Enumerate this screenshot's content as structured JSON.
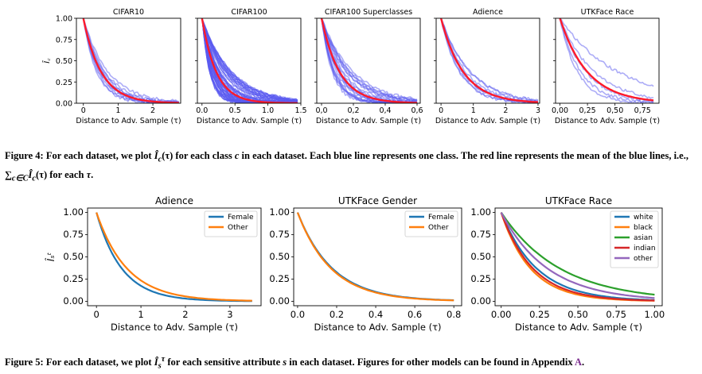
{
  "fig4_caption_parts": [
    "Figure 4: For each dataset, we plot ",
    "Î",
    "c",
    "(τ)",
    " for each class ",
    "c",
    " in each dataset. Each blue line represents one class. The red line represents the mean of the blue lines, i.e., ",
    "∑",
    "c∈C",
    "Î",
    "c",
    "(τ)",
    " for each ",
    "τ",
    "."
  ],
  "fig5_caption_parts": [
    "Figure 5: For each dataset, we plot ",
    "Î",
    "s",
    "τ",
    " for each sensitive attribute ",
    "s",
    " in each dataset. Figures for other models can be found in Appendix ",
    "A",
    "."
  ],
  "colors": {
    "blue_class": "#5b5bf0",
    "red_mean": "#ff1a2a",
    "c0": "#1f77b4",
    "c1": "#ff7f0e",
    "c2": "#2ca02c",
    "c3": "#d62728",
    "c4": "#9467bd",
    "link": "#7b2d8e"
  },
  "chart_data": [
    {
      "type": "line",
      "title": "CIFAR10",
      "xlabel": "Distance to Adv. Sample (τ)",
      "ylabel": "Î_c",
      "xlim": [
        -0.2,
        2.8
      ],
      "ylim": [
        0,
        1
      ],
      "xticks": [
        "0",
        "1",
        "2"
      ],
      "yticks": [
        "0.00",
        "0.25",
        "0.50",
        "0.75",
        "1.00"
      ],
      "n_classes": 10,
      "decay_rates": [
        1.4,
        1.6,
        1.7,
        1.8,
        1.9,
        2.0,
        2.1,
        2.2,
        2.4,
        2.6
      ],
      "mean_decay": 1.95,
      "x_max": 2.75
    },
    {
      "type": "line",
      "title": "CIFAR100",
      "xlabel": "Distance to Adv. Sample (τ)",
      "ylabel": "",
      "xlim": [
        -0.07,
        1.5
      ],
      "ylim": [
        0,
        1
      ],
      "xticks": [
        "0.0",
        "0.5",
        "1.0",
        "1.5"
      ],
      "yticks": [],
      "n_classes": 100,
      "decay_range": [
        2.2,
        9.0
      ],
      "mean_decay": 4.6,
      "x_max": 1.45
    },
    {
      "type": "line",
      "title": "CIFAR100 Superclasses",
      "xlabel": "Distance to Adv. Sample (τ)",
      "ylabel": "",
      "xlim": [
        -0.03,
        0.62
      ],
      "ylim": [
        0,
        1
      ],
      "xticks": [
        "0,0",
        "0,2",
        "0,4",
        "0,6"
      ],
      "yticks": [],
      "n_classes": 20,
      "decay_range": [
        5,
        15
      ],
      "mean_decay": 8.8,
      "x_max": 0.6
    },
    {
      "type": "line",
      "title": "Adience",
      "xlabel": "Distance to Adv. Sample (τ)",
      "ylabel": "",
      "xlim": [
        -0.15,
        3.05
      ],
      "ylim": [
        0,
        1
      ],
      "xticks": [
        "0",
        "1",
        "2",
        "3"
      ],
      "yticks": [],
      "n_classes": 8,
      "decay_range": [
        1.1,
        2.0
      ],
      "mean_decay": 1.45,
      "x_max": 3.0
    },
    {
      "type": "line",
      "title": "UTKFace Race",
      "xlabel": "Distance to Adv. Sample (τ)",
      "ylabel": "",
      "xlim": [
        -0.04,
        0.9
      ],
      "ylim": [
        0,
        1
      ],
      "xticks": [
        "0,00",
        "0,25",
        "0,50",
        "0,75"
      ],
      "yticks": [],
      "n_classes": 5,
      "decay_rates": [
        1.9,
        3.2,
        4.2,
        5.2,
        6.2
      ],
      "mean_decay": 4.0,
      "x_max": 0.85
    },
    {
      "type": "line",
      "title": "Adience",
      "xlabel": "Distance to Adv. Sample (τ)",
      "ylabel": "Î_s^τ",
      "xlim": [
        -0.2,
        3.7
      ],
      "ylim": [
        -0.05,
        1.05
      ],
      "xticks": [
        "0",
        "1",
        "2",
        "3"
      ],
      "yticks": [
        "0.00",
        "0.25",
        "0.50",
        "0.75",
        "1.00"
      ],
      "legend": "top-right",
      "series": [
        {
          "name": "Female",
          "decay": 1.75
        },
        {
          "name": "Other",
          "decay": 1.45
        }
      ],
      "x_max": 3.5
    },
    {
      "type": "line",
      "title": "UTKFace Gender",
      "xlabel": "Distance to Adv. Sample (τ)",
      "ylabel": "",
      "xlim": [
        -0.02,
        0.84
      ],
      "ylim": [
        -0.05,
        1.05
      ],
      "xticks": [
        "0.0",
        "0.2",
        "0.4",
        "0.6",
        "0.8"
      ],
      "yticks": [
        "0.00",
        "0.25",
        "0.50",
        "0.75",
        "1.00"
      ],
      "legend": "top-right",
      "series": [
        {
          "name": "Female",
          "decay": 5.6
        },
        {
          "name": "Other",
          "decay": 5.8
        }
      ],
      "x_max": 0.8
    },
    {
      "type": "line",
      "title": "UTKFace Race",
      "xlabel": "Distance to Adv. Sample (τ)",
      "ylabel": "",
      "xlim": [
        -0.04,
        1.05
      ],
      "ylim": [
        -0.05,
        1.05
      ],
      "xticks": [
        "0.00",
        "0.25",
        "0.50",
        "0.75",
        "1.00"
      ],
      "yticks": [
        "0.00",
        "0.25",
        "0.50",
        "0.75",
        "1.00"
      ],
      "legend": "top-right",
      "series": [
        {
          "name": "white",
          "decay": 4.3
        },
        {
          "name": "black",
          "decay": 5.2
        },
        {
          "name": "asian",
          "decay": 2.6
        },
        {
          "name": "indian",
          "decay": 4.8
        },
        {
          "name": "other",
          "decay": 3.3
        }
      ],
      "x_max": 1.0
    }
  ]
}
